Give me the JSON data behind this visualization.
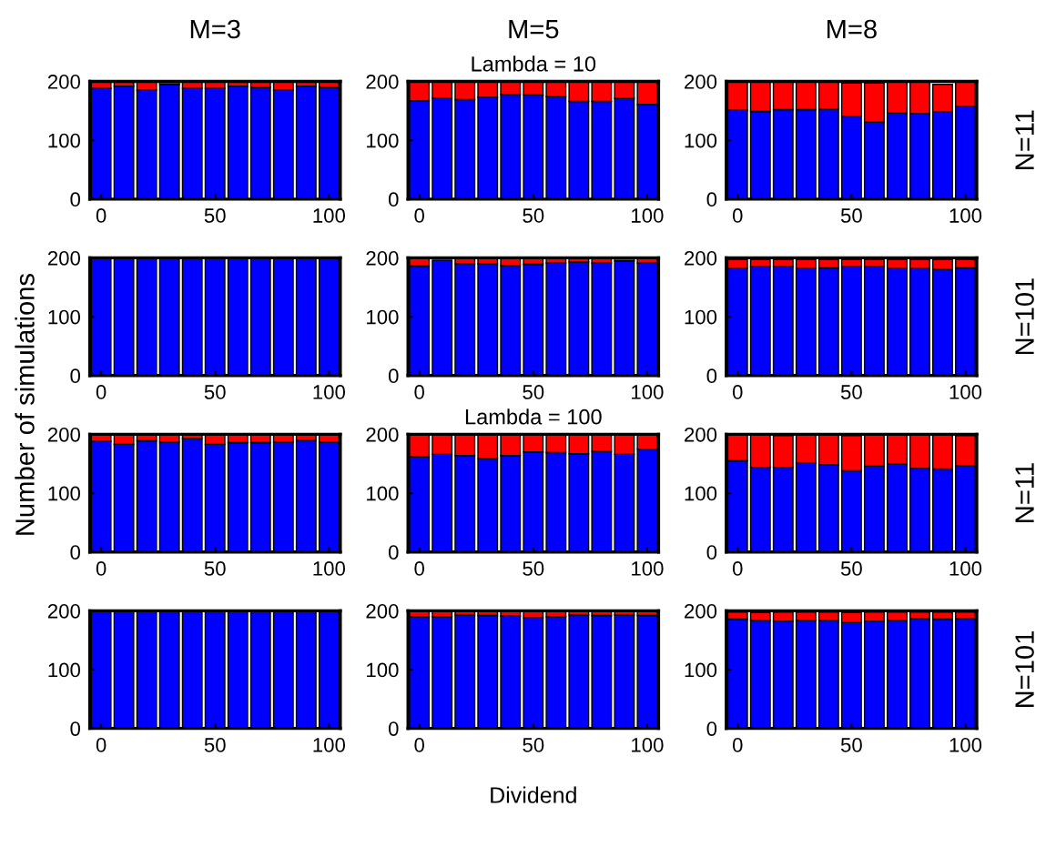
{
  "chart_data": [
    {
      "type": "bar",
      "title": "M=3",
      "stacked": true,
      "x": [
        0,
        10,
        20,
        30,
        40,
        50,
        60,
        70,
        80,
        90,
        100
      ],
      "xlim": [
        -5,
        105
      ],
      "xticks": [
        0,
        50,
        100
      ],
      "ylim": [
        0,
        200
      ],
      "yticks": [
        0,
        100,
        200
      ],
      "grid": false,
      "legend": false,
      "series": [
        {
          "color": "#0000ff",
          "values": [
            188,
            192,
            185,
            195,
            188,
            188,
            192,
            190,
            185,
            192,
            190
          ]
        },
        {
          "color": "#ff0000",
          "values": [
            12,
            8,
            15,
            5,
            12,
            12,
            8,
            10,
            15,
            8,
            10
          ]
        }
      ]
    },
    {
      "type": "bar",
      "title": "M=5",
      "subtitle": "Lambda = 10",
      "stacked": true,
      "x": [
        0,
        10,
        20,
        30,
        40,
        50,
        60,
        70,
        80,
        90,
        100
      ],
      "xlim": [
        -5,
        105
      ],
      "xticks": [
        0,
        50,
        100
      ],
      "ylim": [
        0,
        200
      ],
      "yticks": [
        0,
        100,
        200
      ],
      "grid": false,
      "legend": false,
      "series": [
        {
          "color": "#0000ff",
          "values": [
            167,
            172,
            169,
            173,
            178,
            177,
            174,
            166,
            166,
            171,
            161
          ]
        },
        {
          "color": "#ff0000",
          "values": [
            33,
            28,
            31,
            27,
            22,
            23,
            26,
            34,
            34,
            29,
            39
          ]
        }
      ]
    },
    {
      "type": "bar",
      "title": "M=8",
      "annotations": [
        "N=11"
      ],
      "stacked": true,
      "x": [
        0,
        10,
        20,
        30,
        40,
        50,
        60,
        70,
        80,
        90,
        100
      ],
      "xlim": [
        -5,
        105
      ],
      "xticks": [
        0,
        50,
        100
      ],
      "ylim": [
        0,
        200
      ],
      "yticks": [
        0,
        100,
        200
      ],
      "grid": false,
      "legend": false,
      "series": [
        {
          "color": "#0000ff",
          "values": [
            151,
            149,
            152,
            152,
            153,
            141,
            131,
            146,
            145,
            148,
            157
          ]
        },
        {
          "color": "#ff0000",
          "values": [
            49,
            51,
            48,
            48,
            47,
            56,
            66,
            54,
            55,
            47,
            43
          ]
        }
      ]
    },
    {
      "type": "bar",
      "ylabel": "Number of simulations",
      "stacked": true,
      "x": [
        0,
        10,
        20,
        30,
        40,
        50,
        60,
        70,
        80,
        90,
        100
      ],
      "xlim": [
        -5,
        105
      ],
      "xticks": [
        0,
        50,
        100
      ],
      "ylim": [
        0,
        200
      ],
      "yticks": [
        0,
        100,
        200
      ],
      "grid": false,
      "legend": false,
      "series": [
        {
          "color": "#0000ff",
          "values": [
            200,
            200,
            200,
            200,
            200,
            200,
            200,
            200,
            200,
            200,
            200
          ]
        }
      ]
    },
    {
      "type": "bar",
      "stacked": true,
      "x": [
        0,
        10,
        20,
        30,
        40,
        50,
        60,
        70,
        80,
        90,
        100
      ],
      "xlim": [
        -5,
        105
      ],
      "xticks": [
        0,
        50,
        100
      ],
      "ylim": [
        0,
        200
      ],
      "yticks": [
        0,
        100,
        200
      ],
      "grid": false,
      "legend": false,
      "series": [
        {
          "color": "#0000ff",
          "values": [
            186,
            196,
            190,
            190,
            187,
            189,
            191,
            193,
            191,
            195,
            191
          ]
        },
        {
          "color": "#ff0000",
          "values": [
            14,
            null,
            10,
            10,
            13,
            11,
            9,
            7,
            9,
            5,
            9
          ]
        }
      ]
    },
    {
      "type": "bar",
      "annotations": [
        "N=101"
      ],
      "stacked": true,
      "x": [
        0,
        10,
        20,
        30,
        40,
        50,
        60,
        70,
        80,
        90,
        100
      ],
      "xlim": [
        -5,
        105
      ],
      "xticks": [
        0,
        50,
        100
      ],
      "ylim": [
        0,
        200
      ],
      "yticks": [
        0,
        100,
        200
      ],
      "grid": false,
      "legend": false,
      "series": [
        {
          "color": "#0000ff",
          "values": [
            182,
            185,
            185,
            182,
            183,
            185,
            185,
            182,
            182,
            181,
            183
          ]
        },
        {
          "color": "#ff0000",
          "values": [
            15,
            12,
            12,
            15,
            14,
            12,
            12,
            15,
            15,
            16,
            14
          ]
        }
      ]
    },
    {
      "type": "bar",
      "stacked": true,
      "x": [
        0,
        10,
        20,
        30,
        40,
        50,
        60,
        70,
        80,
        90,
        100
      ],
      "xlim": [
        -5,
        105
      ],
      "xticks": [
        0,
        50,
        100
      ],
      "ylim": [
        0,
        200
      ],
      "yticks": [
        0,
        100,
        200
      ],
      "grid": false,
      "legend": false,
      "series": [
        {
          "color": "#0000ff",
          "values": [
            188,
            183,
            189,
            187,
            193,
            183,
            186,
            186,
            187,
            190,
            187
          ]
        },
        {
          "color": "#ff0000",
          "values": [
            12,
            17,
            11,
            13,
            7,
            17,
            14,
            14,
            13,
            10,
            13
          ]
        }
      ]
    },
    {
      "type": "bar",
      "subtitle": "Lambda = 100",
      "stacked": true,
      "x": [
        0,
        10,
        20,
        30,
        40,
        50,
        60,
        70,
        80,
        90,
        100
      ],
      "xlim": [
        -5,
        105
      ],
      "xticks": [
        0,
        50,
        100
      ],
      "ylim": [
        0,
        200
      ],
      "yticks": [
        0,
        100,
        200
      ],
      "grid": false,
      "legend": false,
      "series": [
        {
          "color": "#0000ff",
          "values": [
            162,
            166,
            164,
            159,
            164,
            170,
            169,
            167,
            171,
            166,
            175
          ]
        },
        {
          "color": "#ff0000",
          "values": [
            38,
            34,
            36,
            41,
            36,
            30,
            31,
            33,
            29,
            34,
            25
          ]
        }
      ]
    },
    {
      "type": "bar",
      "annotations": [
        "N=11"
      ],
      "stacked": true,
      "x": [
        0,
        10,
        20,
        30,
        40,
        50,
        60,
        70,
        80,
        90,
        100
      ],
      "xlim": [
        -5,
        105
      ],
      "xticks": [
        0,
        50,
        100
      ],
      "ylim": [
        0,
        200
      ],
      "yticks": [
        0,
        100,
        200
      ],
      "grid": false,
      "legend": false,
      "series": [
        {
          "color": "#0000ff",
          "values": [
            155,
            144,
            144,
            151,
            148,
            138,
            146,
            150,
            142,
            141,
            147
          ]
        },
        {
          "color": "#ff0000",
          "values": [
            45,
            56,
            54,
            49,
            52,
            60,
            54,
            50,
            58,
            59,
            51
          ]
        }
      ]
    },
    {
      "type": "bar",
      "stacked": true,
      "x": [
        0,
        10,
        20,
        30,
        40,
        50,
        60,
        70,
        80,
        90,
        100
      ],
      "xlim": [
        -5,
        105
      ],
      "xticks": [
        0,
        50,
        100
      ],
      "ylim": [
        0,
        200
      ],
      "yticks": [
        0,
        100,
        200
      ],
      "grid": false,
      "legend": false,
      "series": [
        {
          "color": "#0000ff",
          "values": [
            200,
            200,
            200,
            200,
            200,
            200,
            200,
            200,
            200,
            200,
            200
          ]
        }
      ]
    },
    {
      "type": "bar",
      "xlabel": "Dividend",
      "stacked": true,
      "x": [
        0,
        10,
        20,
        30,
        40,
        50,
        60,
        70,
        80,
        90,
        100
      ],
      "xlim": [
        -5,
        105
      ],
      "xticks": [
        0,
        50,
        100
      ],
      "ylim": [
        0,
        200
      ],
      "yticks": [
        0,
        100,
        200
      ],
      "grid": false,
      "legend": false,
      "series": [
        {
          "color": "#0000ff",
          "values": [
            190,
            190,
            193,
            192,
            191,
            188,
            190,
            193,
            192,
            193,
            192
          ]
        },
        {
          "color": "#ff0000",
          "values": [
            9,
            10,
            7,
            8,
            8,
            11,
            9,
            7,
            8,
            7,
            8
          ]
        }
      ]
    },
    {
      "type": "bar",
      "annotations": [
        "N=101"
      ],
      "stacked": true,
      "x": [
        0,
        10,
        20,
        30,
        40,
        50,
        60,
        70,
        80,
        90,
        100
      ],
      "xlim": [
        -5,
        105
      ],
      "xticks": [
        0,
        50,
        100
      ],
      "ylim": [
        0,
        200
      ],
      "yticks": [
        0,
        100,
        200
      ],
      "grid": false,
      "legend": false,
      "series": [
        {
          "color": "#0000ff",
          "values": [
            186,
            184,
            182,
            184,
            184,
            180,
            182,
            184,
            187,
            186,
            187
          ]
        },
        {
          "color": "#ff0000",
          "values": [
            12,
            13,
            16,
            14,
            14,
            17,
            16,
            14,
            11,
            12,
            11
          ]
        }
      ]
    }
  ]
}
